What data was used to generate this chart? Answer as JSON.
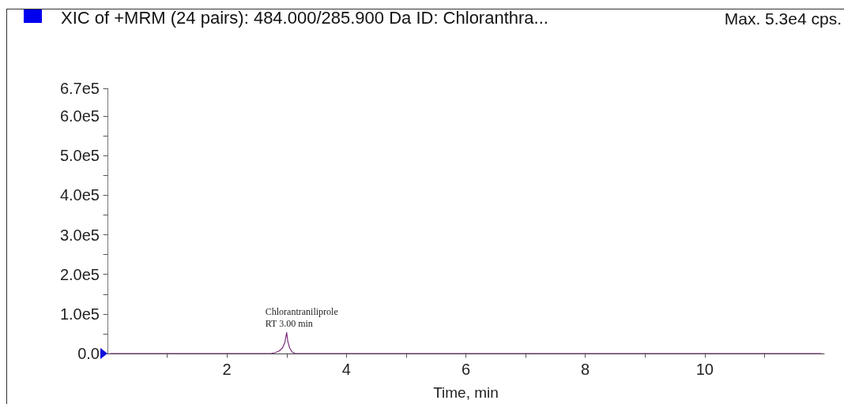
{
  "chart_data": {
    "type": "line",
    "title": "XIC of +MRM (24 pairs): 484.000/285.900 Da ID: Chloranthra...",
    "xlabel": "Time, min",
    "annotations": [
      "Max. 5.3e4 cps.",
      {
        "text": "Chlorantraniliprole\nRT 3.00 min",
        "x": 3.0,
        "y": 53000
      }
    ],
    "x": [
      0.05,
      2.74,
      2.8,
      2.87,
      2.93,
      2.97,
      3.0,
      3.02,
      3.05,
      3.09,
      3.14,
      11.95
    ],
    "values": [
      0,
      0,
      2000,
      6000,
      14000,
      28000,
      53000,
      30000,
      14000,
      4000,
      0,
      0
    ],
    "color": "#7b2d7b",
    "marker": "none",
    "line_style": "solid",
    "xlim": [
      0,
      12
    ],
    "xticks": [
      {
        "value": 1,
        "label": null
      },
      2,
      {
        "value": 3,
        "label": null
      },
      4,
      {
        "value": 5,
        "label": null
      },
      6,
      {
        "value": 7,
        "label": null
      },
      8,
      {
        "value": 9,
        "label": null
      },
      10,
      {
        "value": 11,
        "label": null
      }
    ],
    "ylim": [
      0,
      670000
    ],
    "yticks": [
      {
        "value": 0,
        "label": "0.0"
      },
      {
        "value": 50000,
        "label": null
      },
      {
        "value": 100000,
        "label": "1.0e5"
      },
      {
        "value": 150000,
        "label": null
      },
      {
        "value": 200000,
        "label": "2.0e5"
      },
      {
        "value": 250000,
        "label": null
      },
      {
        "value": 300000,
        "label": "3.0e5"
      },
      {
        "value": 350000,
        "label": null
      },
      {
        "value": 400000,
        "label": "4.0e5"
      },
      {
        "value": 450000,
        "label": null
      },
      {
        "value": 500000,
        "label": "5.0e5"
      },
      {
        "value": 550000,
        "label": null
      },
      {
        "value": 600000,
        "label": "6.0e5"
      },
      {
        "value": 670000,
        "label": "6.7e5"
      }
    ]
  }
}
